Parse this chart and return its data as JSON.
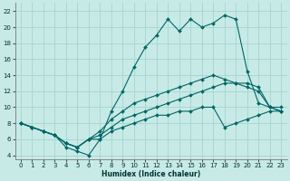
{
  "xlabel": "Humidex (Indice chaleur)",
  "ylabel": "",
  "bg_color": "#c8eae6",
  "grid_color": "#a8d8d4",
  "line_color": "#006666",
  "xlim": [
    -0.5,
    23.5
  ],
  "ylim": [
    3.5,
    23
  ],
  "xticks": [
    0,
    1,
    2,
    3,
    4,
    5,
    6,
    7,
    8,
    9,
    10,
    11,
    12,
    13,
    14,
    15,
    16,
    17,
    18,
    19,
    20,
    21,
    22,
    23
  ],
  "yticks": [
    4,
    6,
    8,
    10,
    12,
    14,
    16,
    18,
    20,
    22
  ],
  "series": [
    [
      8,
      7.5,
      7,
      6.5,
      5,
      4.5,
      4,
      6,
      9.5,
      12,
      15,
      17.5,
      19,
      21,
      19.5,
      21,
      20,
      20.5,
      21.5,
      21,
      14.5,
      10.5,
      10,
      10
    ],
    [
      8,
      7.5,
      7,
      6.5,
      5.5,
      5,
      6,
      7,
      8.5,
      9.5,
      10.5,
      11,
      11.5,
      12,
      12.5,
      13,
      13.5,
      14,
      13.5,
      13,
      12.5,
      12,
      10,
      9.5
    ],
    [
      8,
      7.5,
      7,
      6.5,
      5.5,
      5,
      6,
      6.5,
      7.5,
      8.5,
      9,
      9.5,
      10,
      10.5,
      11,
      11.5,
      12,
      12.5,
      13,
      13,
      13,
      12.5,
      10,
      9.5
    ],
    [
      8,
      7.5,
      7,
      6.5,
      5.5,
      5,
      6,
      6,
      7,
      7.5,
      8,
      8.5,
      9,
      9,
      9.5,
      9.5,
      10,
      10,
      7.5,
      8,
      8.5,
      9,
      9.5,
      9.5
    ]
  ]
}
